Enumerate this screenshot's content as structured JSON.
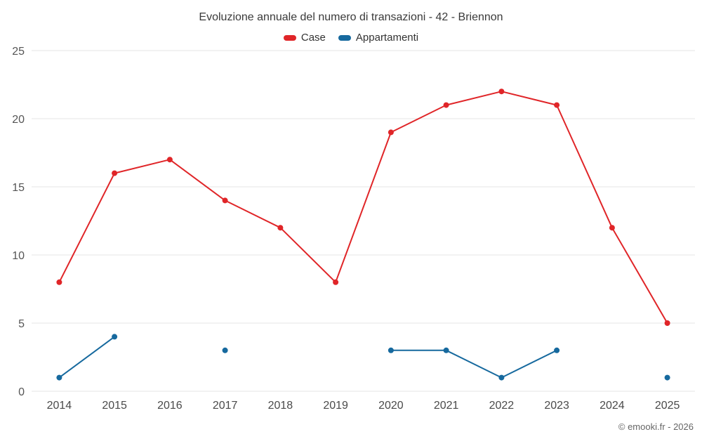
{
  "title": "Evoluzione annuale del numero di transazioni - 42 - Briennon",
  "credit": "© emooki.fr - 2026",
  "legend": [
    {
      "label": "Case",
      "color": "#e02528"
    },
    {
      "label": "Appartamenti",
      "color": "#16699e"
    }
  ],
  "chart_data": {
    "type": "line",
    "title": "Evoluzione annuale del numero di transazioni - 42 - Briennon",
    "categories": [
      "2014",
      "2015",
      "2016",
      "2017",
      "2018",
      "2019",
      "2020",
      "2021",
      "2022",
      "2023",
      "2024",
      "2025"
    ],
    "series": [
      {
        "name": "Case",
        "color": "#e02528",
        "values": [
          8,
          16,
          17,
          14,
          12,
          8,
          19,
          21,
          22,
          21,
          12,
          5
        ]
      },
      {
        "name": "Appartamenti",
        "color": "#16699e",
        "values": [
          1,
          4,
          null,
          3,
          null,
          null,
          3,
          3,
          1,
          3,
          null,
          1
        ]
      }
    ],
    "xlabel": "",
    "ylabel": "",
    "ylim": [
      0,
      25
    ],
    "yticks": [
      0,
      5,
      10,
      15,
      20,
      25
    ],
    "grid": "horizontal",
    "legend_position": "top",
    "marker": "circle",
    "marker_radius": 4,
    "line_width": 2,
    "gridline_color": "#e6e6e6",
    "tick_label_color": "#555555"
  }
}
